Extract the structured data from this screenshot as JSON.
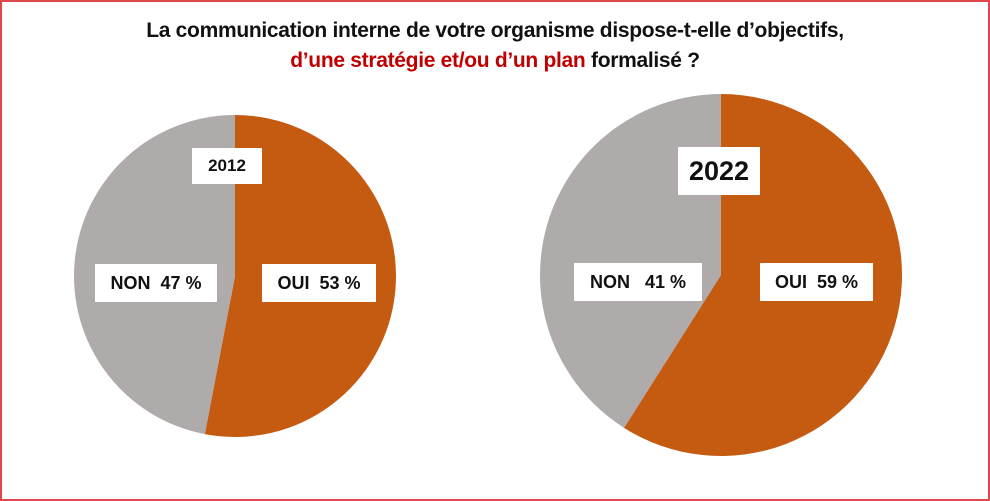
{
  "chart_data": [
    {
      "type": "pie",
      "title": "La communication interne de votre organisme dispose-t-elle d’objectifs, d’une stratégie et/ou d’un plan formalisé ?",
      "year_label": "2012",
      "slices": [
        {
          "name": "OUI",
          "value": 53,
          "label": "OUI  53 %",
          "color": "#C55A11"
        },
        {
          "name": "NON",
          "value": 47,
          "label": "NON  47 %",
          "color": "#AFABAB"
        }
      ]
    },
    {
      "type": "pie",
      "title": "La communication interne de votre organisme dispose-t-elle d’objectifs, d’une stratégie et/ou d’un plan formalisé ?",
      "year_label": "2022",
      "slices": [
        {
          "name": "OUI",
          "value": 59,
          "label": "OUI  59 %",
          "color": "#C55A11"
        },
        {
          "name": "NON",
          "value": 41,
          "label": "NON   41 %",
          "color": "#AFABAB"
        }
      ]
    }
  ],
  "title": {
    "line1": "La communication interne de votre organisme dispose-t-elle d’objectifs,",
    "line2_highlight": "d’une stratégie et/ou d’un plan",
    "line2_rest": " formalisé ?"
  }
}
